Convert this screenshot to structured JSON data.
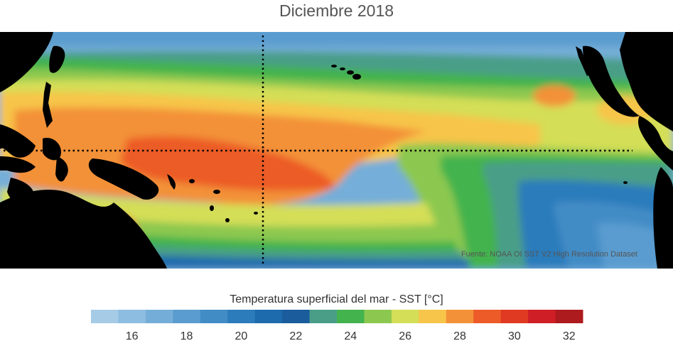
{
  "title": "Diciembre 2018",
  "source": "Fuente: NOAA OI SST V2 High Resolution Dataset",
  "colorbar": {
    "label": "Temperatura superficial del mar - SST  [°C]",
    "min": 15,
    "max": 33,
    "step": 1,
    "ticks": [
      16,
      18,
      20,
      22,
      24,
      26,
      28,
      30,
      32
    ],
    "colors": [
      "#a6cbe6",
      "#8dbde0",
      "#74aed8",
      "#5a9ccf",
      "#428cc6",
      "#2c7bbb",
      "#1d6aad",
      "#1b5c9c",
      "#4a9e88",
      "#43b34d",
      "#8cc84f",
      "#d4de57",
      "#f7c54a",
      "#f39138",
      "#ec5b28",
      "#e03a22",
      "#cf1e25",
      "#ae1b1e"
    ]
  },
  "land_color": "#000000",
  "reference_lines": [
    "equator",
    "180° meridian"
  ]
}
